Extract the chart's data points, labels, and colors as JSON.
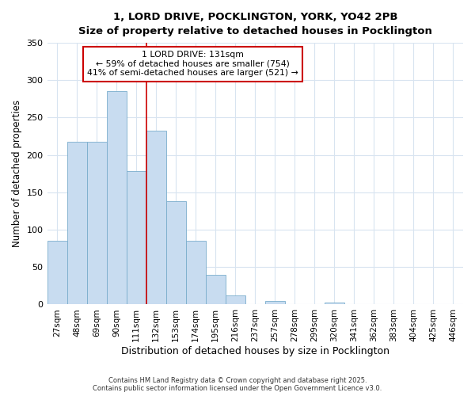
{
  "title_line1": "1, LORD DRIVE, POCKLINGTON, YORK, YO42 2PB",
  "title_line2": "Size of property relative to detached houses in Pocklington",
  "xlabel": "Distribution of detached houses by size in Pocklington",
  "ylabel": "Number of detached properties",
  "categories": [
    "27sqm",
    "48sqm",
    "69sqm",
    "90sqm",
    "111sqm",
    "132sqm",
    "153sqm",
    "174sqm",
    "195sqm",
    "216sqm",
    "237sqm",
    "257sqm",
    "278sqm",
    "299sqm",
    "320sqm",
    "341sqm",
    "362sqm",
    "383sqm",
    "404sqm",
    "425sqm",
    "446sqm"
  ],
  "values": [
    85,
    218,
    218,
    285,
    178,
    232,
    138,
    85,
    40,
    12,
    0,
    5,
    0,
    0,
    3,
    0,
    0,
    0,
    0,
    0,
    0
  ],
  "bar_color": "#c8dcf0",
  "bar_edge_color": "#7aadcc",
  "highlight_color": "#cc0000",
  "property_label": "1 LORD DRIVE: 131sqm",
  "annotation_line1": "← 59% of detached houses are smaller (754)",
  "annotation_line2": "41% of semi-detached houses are larger (521) →",
  "ylim": [
    0,
    350
  ],
  "yticks": [
    0,
    50,
    100,
    150,
    200,
    250,
    300,
    350
  ],
  "footnote1": "Contains HM Land Registry data © Crown copyright and database right 2025.",
  "footnote2": "Contains public sector information licensed under the Open Government Licence v3.0.",
  "bg_color": "#ffffff",
  "grid_color": "#d8e4f0"
}
